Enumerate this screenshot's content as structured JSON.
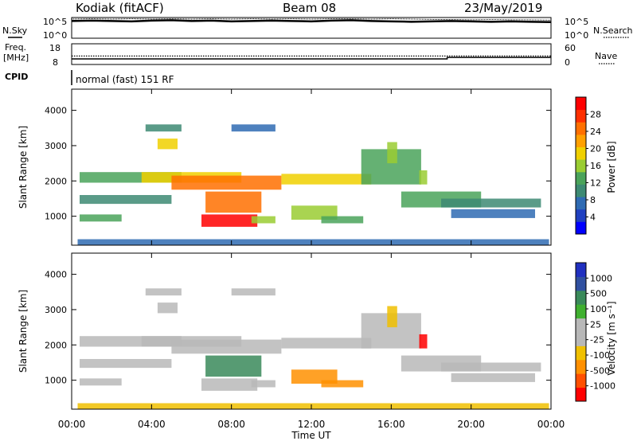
{
  "header": {
    "station": "Kodiak (fitACF)",
    "beam": "Beam 08",
    "date": "23/May/2019"
  },
  "noise_panel": {
    "left_label": "N.Sky",
    "right_label": "N.Search",
    "left_ticks": [
      "10^5",
      "10^0"
    ],
    "right_ticks": [
      "10^5",
      "10^0"
    ],
    "n_sky": [
      4.3,
      4.4,
      4.3,
      4.2,
      4.4,
      4.5,
      4.3,
      4.4,
      4.2,
      4.3,
      4.4,
      4.3,
      4.2,
      4.4,
      4.5,
      4.3,
      4.2,
      4.1,
      4.2,
      4.3,
      4.2,
      4.1,
      4.2,
      4.1,
      4.0
    ],
    "n_search": [
      4.8,
      4.9,
      4.8,
      4.9,
      4.8,
      4.9,
      4.8,
      4.9,
      4.8,
      4.9,
      4.8,
      4.9,
      4.8,
      4.9,
      4.9,
      4.8,
      4.9,
      4.8,
      4.7,
      4.7,
      4.6,
      4.7,
      4.6,
      4.6,
      4.5
    ]
  },
  "freq_panel": {
    "left_label_1": "Freq.",
    "left_label_2": "[MHz]",
    "right_label": "Nave",
    "left_ticks": [
      "18",
      "8"
    ],
    "right_ticks": [
      "60",
      "0"
    ],
    "freq_mhz": [
      [
        0,
        10.5
      ],
      [
        18.8,
        10.5
      ],
      [
        18.8,
        11.3
      ],
      [
        24,
        11.3
      ]
    ],
    "nave": [
      [
        0,
        24
      ],
      [
        24,
        24
      ]
    ]
  },
  "cpid": {
    "label": "CPID",
    "mode": "normal (fast) 151 RF"
  },
  "x_axis": {
    "title": "Time UT",
    "ticks": [
      "00:00",
      "04:00",
      "08:00",
      "12:00",
      "16:00",
      "20:00",
      "00:00"
    ],
    "range_hours": [
      0,
      24
    ]
  },
  "y_axis": {
    "title": "Slant Range [km]",
    "ticks": [
      "1000",
      "2000",
      "3000",
      "4000"
    ],
    "range_km": [
      180,
      4600
    ]
  },
  "power_colorbar": {
    "title": "Power [dB]",
    "ticks": [
      "4",
      "8",
      "12",
      "16",
      "20",
      "24",
      "28"
    ],
    "colors": [
      "#0000ff",
      "#2040c0",
      "#2f6bb3",
      "#3d8a73",
      "#4aa35a",
      "#9acd32",
      "#f0d000",
      "#ffa000",
      "#ff7000",
      "#ff3000",
      "#ff0000"
    ],
    "range_db": [
      0,
      32
    ]
  },
  "velocity_colorbar": {
    "title": "Velocity [m s⁻¹]",
    "ticks": [
      "1000",
      "500",
      "100",
      "25",
      "-25",
      "-100",
      "-500",
      "-1000"
    ],
    "colors": [
      "#2030c0",
      "#3050a0",
      "#3a8a5a",
      "#40b030",
      "#b8b8b8",
      "#b8b8b8",
      "#f0c000",
      "#ff9000",
      "#ff5000",
      "#ff0000"
    ]
  },
  "chart_data": {
    "type": "heatmap",
    "title": "Kodiak (fitACF) Beam 08 23/May/2019",
    "xlabel": "Time UT",
    "ylabel": "Slant Range [km]",
    "xlim": [
      0,
      24
    ],
    "ylim": [
      180,
      4600
    ],
    "echo_regions": [
      {
        "t0": 0.4,
        "t1": 5.5,
        "r0": 1950,
        "r1": 2250,
        "power_db": 14,
        "velocity": 0
      },
      {
        "t0": 3.5,
        "t1": 8.5,
        "r0": 1950,
        "r1": 2250,
        "power_db": 20,
        "velocity": 0
      },
      {
        "t0": 5.0,
        "t1": 10.5,
        "r0": 1750,
        "r1": 2150,
        "power_db": 24,
        "velocity": -20
      },
      {
        "t0": 10.5,
        "t1": 15.0,
        "r0": 1900,
        "r1": 2200,
        "power_db": 18,
        "velocity": 0
      },
      {
        "t0": 0.4,
        "t1": 5.0,
        "r0": 1350,
        "r1": 1600,
        "power_db": 10,
        "velocity": 0
      },
      {
        "t0": 0.4,
        "t1": 2.5,
        "r0": 850,
        "r1": 1050,
        "power_db": 12,
        "velocity": 0
      },
      {
        "t0": 6.7,
        "t1": 9.5,
        "r0": 1100,
        "r1": 1700,
        "power_db": 24,
        "velocity": 120
      },
      {
        "t0": 6.5,
        "t1": 9.3,
        "r0": 700,
        "r1": 1050,
        "power_db": 30,
        "velocity": 5
      },
      {
        "t0": 9.0,
        "t1": 10.2,
        "r0": 800,
        "r1": 1000,
        "power_db": 16,
        "velocity": 10
      },
      {
        "t0": 11.0,
        "t1": 13.3,
        "r0": 900,
        "r1": 1300,
        "power_db": 16,
        "velocity": -200
      },
      {
        "t0": 12.5,
        "t1": 14.6,
        "r0": 800,
        "r1": 1000,
        "power_db": 14,
        "velocity": -150
      },
      {
        "t0": 3.7,
        "t1": 5.5,
        "r0": 3400,
        "r1": 3600,
        "power_db": 10,
        "velocity": 10
      },
      {
        "t0": 4.3,
        "t1": 5.3,
        "r0": 2900,
        "r1": 3200,
        "power_db": 18,
        "velocity": 0
      },
      {
        "t0": 8.0,
        "t1": 10.2,
        "r0": 3400,
        "r1": 3600,
        "power_db": 8,
        "velocity": 10
      },
      {
        "t0": 14.5,
        "t1": 17.5,
        "r0": 1900,
        "r1": 2900,
        "power_db": 12,
        "velocity": -20
      },
      {
        "t0": 15.8,
        "t1": 16.3,
        "r0": 2500,
        "r1": 3100,
        "power_db": 16,
        "velocity": -40
      },
      {
        "t0": 17.4,
        "t1": 17.8,
        "r0": 1900,
        "r1": 2300,
        "power_db": 16,
        "velocity": -800
      },
      {
        "t0": 16.5,
        "t1": 20.5,
        "r0": 1250,
        "r1": 1700,
        "power_db": 12,
        "velocity": 0
      },
      {
        "t0": 18.5,
        "t1": 23.5,
        "r0": 1250,
        "r1": 1500,
        "power_db": 10,
        "velocity": 0
      },
      {
        "t0": 19.0,
        "t1": 23.2,
        "r0": 950,
        "r1": 1200,
        "power_db": 8,
        "velocity": 0
      },
      {
        "t0": 0.3,
        "t1": 23.9,
        "r0": 180,
        "r1": 350,
        "power_db": 8,
        "velocity": -30
      }
    ]
  }
}
